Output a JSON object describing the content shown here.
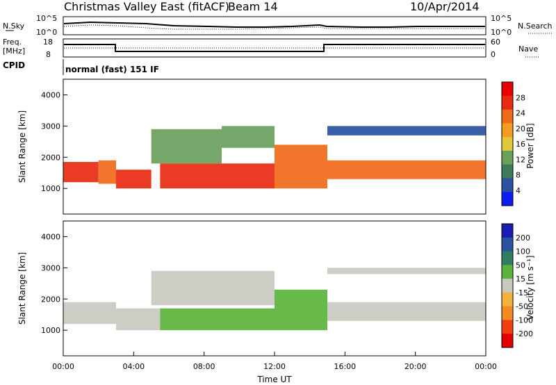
{
  "header": {
    "title": "Christmas Valley East (fitACF)",
    "beam": "Beam 14",
    "date": "10/Apr/2014"
  },
  "noise_panel": {
    "left_label": "N.Sky",
    "right_label": "N.Search",
    "left_ticks": [
      "10^5",
      "10^0"
    ],
    "right_ticks": [
      "10^5",
      "10^0"
    ]
  },
  "freq_panel": {
    "left_label_1": "Freq.",
    "left_label_2": "[MHz]",
    "right_label": "Nave",
    "left_ticks": [
      "18",
      "8"
    ],
    "right_ticks": [
      "60",
      "0"
    ]
  },
  "cpid_panel": {
    "label": "CPID",
    "text": "normal (fast) 151 IF"
  },
  "colors": {
    "power_scale": [
      "#0b1df0",
      "#2b52a0",
      "#3c7a58",
      "#69a15b",
      "#e3c73b",
      "#f49b22",
      "#f06a18",
      "#e82a12",
      "#e80000"
    ],
    "velocity_scale": [
      "#e00000",
      "#f04010",
      "#f58a22",
      "#f6b33a",
      "#c9c9c0",
      "#5ab33a",
      "#2f7e62",
      "#2a52a0",
      "#1a1ab4"
    ]
  },
  "chart_data": [
    {
      "type": "heatmap",
      "panel": "power",
      "ylabel": "Slant Range [km]",
      "ylim": [
        180,
        4500
      ],
      "yticks": [
        "1000",
        "2000",
        "3000",
        "4000"
      ],
      "xlim_hours": [
        0,
        24
      ],
      "colorbar_label": "Power [dB]",
      "colorbar_ticks": [
        "28",
        "24",
        "20",
        "16",
        "12",
        "8",
        "4"
      ],
      "colorbar_range": [
        0,
        32
      ],
      "bands": [
        {
          "t": [
            0.0,
            2.0
          ],
          "r": [
            1200,
            1850
          ],
          "level": 26
        },
        {
          "t": [
            2.0,
            3.0
          ],
          "r": [
            1150,
            1900
          ],
          "level": 22
        },
        {
          "t": [
            3.0,
            5.0
          ],
          "r": [
            1000,
            1600
          ],
          "level": 26
        },
        {
          "t": [
            5.0,
            9.0
          ],
          "r": [
            1800,
            2900
          ],
          "level": 14
        },
        {
          "t": [
            5.5,
            12.0
          ],
          "r": [
            1000,
            1800
          ],
          "level": 25
        },
        {
          "t": [
            9.0,
            12.0
          ],
          "r": [
            2300,
            3000
          ],
          "level": 14
        },
        {
          "t": [
            12.0,
            15.0
          ],
          "r": [
            1000,
            2400
          ],
          "level": 22
        },
        {
          "t": [
            15.0,
            24.0
          ],
          "r": [
            1300,
            1900
          ],
          "level": 24
        },
        {
          "t": [
            15.0,
            24.0
          ],
          "r": [
            2700,
            3000
          ],
          "level": 6
        }
      ]
    },
    {
      "type": "heatmap",
      "panel": "velocity",
      "ylabel": "Slant Range [km]",
      "xlabel": "Time UT",
      "ylim": [
        180,
        4500
      ],
      "yticks": [
        "1000",
        "2000",
        "3000",
        "4000"
      ],
      "xticks": [
        "00:00",
        "04:00",
        "08:00",
        "12:00",
        "16:00",
        "20:00",
        "00:00"
      ],
      "xlim_hours": [
        0,
        24
      ],
      "colorbar_label": "Velocity [m s⁻¹]",
      "colorbar_ticks": [
        "200",
        "100",
        "50",
        "15",
        "-15",
        "-50",
        "-100",
        "-200"
      ],
      "bands": [
        {
          "t": [
            0.0,
            3.0
          ],
          "r": [
            1200,
            1900
          ],
          "velocity": 0
        },
        {
          "t": [
            3.0,
            5.5
          ],
          "r": [
            1000,
            1700
          ],
          "velocity": 0
        },
        {
          "t": [
            5.0,
            12.0
          ],
          "r": [
            1800,
            2900
          ],
          "velocity": 0
        },
        {
          "t": [
            5.5,
            12.0
          ],
          "r": [
            1000,
            1700
          ],
          "velocity": 40
        },
        {
          "t": [
            12.0,
            15.0
          ],
          "r": [
            1000,
            2300
          ],
          "velocity": 40
        },
        {
          "t": [
            15.0,
            24.0
          ],
          "r": [
            1300,
            1900
          ],
          "velocity": 0
        },
        {
          "t": [
            15.0,
            24.0
          ],
          "r": [
            2800,
            3000
          ],
          "velocity": 0
        }
      ]
    }
  ]
}
